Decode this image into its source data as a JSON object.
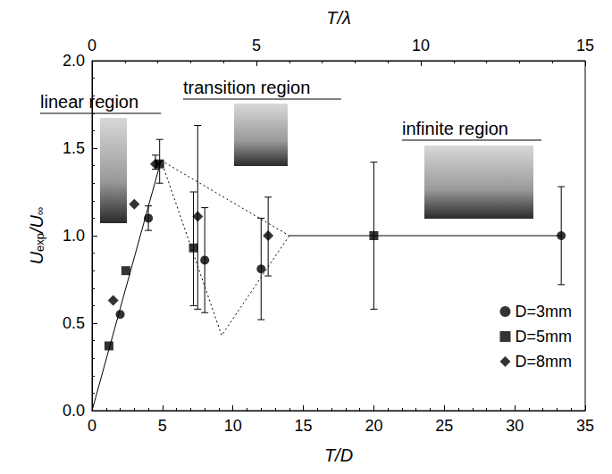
{
  "chart_data": {
    "type": "scatter",
    "xlabel": "T/D",
    "x2label": "T/λ",
    "ylabel": {
      "text": "Uexp/U∞",
      "subscripts": [
        "exp",
        "∞"
      ]
    },
    "xlim": [
      0,
      35
    ],
    "xticks": [
      0,
      5,
      10,
      15,
      20,
      25,
      30,
      35
    ],
    "x2lim": [
      0,
      15
    ],
    "x2ticks": [
      0,
      5,
      10,
      15
    ],
    "ylim": [
      0,
      2
    ],
    "yticks": [
      {
        "value": 0,
        "label": "0.0"
      },
      {
        "value": 0.5,
        "label": "0.5"
      },
      {
        "value": 1,
        "label": "1.0"
      },
      {
        "value": 1.5,
        "label": "1.5"
      },
      {
        "value": 2,
        "label": "2.0"
      }
    ],
    "grid": false,
    "legend": "bottom-right",
    "annotations": [
      "linear region",
      "transition region",
      "infinite region"
    ],
    "series": [
      {
        "name": "D=3mm",
        "color": "#000000",
        "marker": "circle",
        "x": [
          2,
          4,
          8,
          12,
          33.3
        ],
        "values": [
          0.55,
          1.1,
          0.86,
          0.81,
          1.0
        ],
        "error_range": [
          null,
          [
            1.03,
            1.17
          ],
          [
            0.56,
            1.16
          ],
          [
            0.52,
            1.1
          ],
          [
            0.72,
            1.28
          ]
        ]
      },
      {
        "name": "D=5mm",
        "color": "#000000",
        "marker": "square",
        "x": [
          1.2,
          2.4,
          4.8,
          7.2,
          20
        ],
        "values": [
          0.37,
          0.8,
          1.41,
          0.93,
          1.0
        ],
        "error_range": [
          null,
          null,
          [
            1.3,
            1.55
          ],
          [
            0.6,
            1.25
          ],
          [
            0.58,
            1.42
          ]
        ]
      },
      {
        "name": "D=8mm",
        "color": "#000000",
        "marker": "diamond",
        "x": [
          1.5,
          3,
          4.5,
          7.5,
          12.5
        ],
        "values": [
          0.63,
          1.18,
          1.41,
          1.11,
          1.0
        ],
        "error_range": [
          null,
          null,
          [
            1.38,
            1.46
          ],
          [
            0.58,
            1.63
          ],
          [
            0.77,
            1.22
          ]
        ]
      }
    ],
    "lines": [
      {
        "line_style": "solid",
        "color": "#000000",
        "x": [
          0,
          4.9
        ],
        "y": [
          0,
          1.43
        ]
      },
      {
        "line_style": "dotted",
        "color": "#000000",
        "x": [
          4.9,
          14
        ],
        "y": [
          1.43,
          1.0
        ]
      },
      {
        "line_style": "dotted",
        "color": "#000000",
        "x": [
          4.9,
          9.2,
          14
        ],
        "y": [
          1.43,
          0.43,
          1.0
        ]
      },
      {
        "line_style": "solid",
        "color": "#000000",
        "x": [
          14,
          33.3
        ],
        "y": [
          1.0,
          1.0
        ]
      }
    ]
  }
}
